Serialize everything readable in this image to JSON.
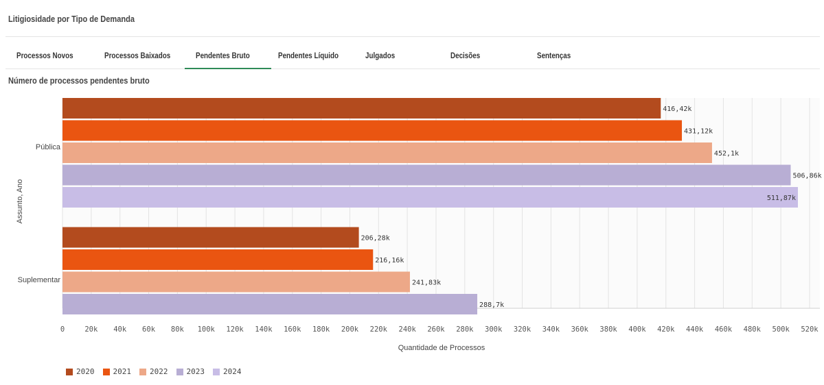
{
  "page": {
    "title": "Litigiosidade por Tipo de Demanda"
  },
  "tabs": [
    {
      "label": "Processos Novos",
      "active": false
    },
    {
      "label": "Processos Baixados",
      "active": false
    },
    {
      "label": "Pendentes Bruto",
      "active": true
    },
    {
      "label": "Pendentes Líquido",
      "active": false
    },
    {
      "label": "Julgados",
      "active": false
    },
    {
      "label": "Decisões",
      "active": false
    },
    {
      "label": "Sentenças",
      "active": false
    }
  ],
  "colors": {
    "2020": "#b34b1e",
    "2021": "#ea5511",
    "2022": "#eda888",
    "2023": "#b8aed4",
    "2024": "#c8bde6",
    "tab_active": "#2e8b57"
  },
  "chart_data": {
    "type": "bar",
    "orientation": "horizontal",
    "title": "Número de processos pendentes bruto",
    "xlabel": "Quantidade de Processos",
    "ylabel": "Assunto, Ano",
    "xlim": [
      0,
      520000
    ],
    "xticks": [
      "0",
      "20k",
      "40k",
      "60k",
      "80k",
      "100k",
      "120k",
      "140k",
      "160k",
      "180k",
      "200k",
      "220k",
      "240k",
      "260k",
      "280k",
      "300k",
      "320k",
      "340k",
      "360k",
      "380k",
      "400k",
      "420k",
      "440k",
      "460k",
      "480k",
      "500k",
      "520k"
    ],
    "grid": true,
    "legend_position": "bottom-left",
    "categories": [
      "Pública",
      "Suplementar"
    ],
    "series": [
      {
        "name": "2020",
        "values": [
          416420,
          206280
        ],
        "labels": [
          "416,42k",
          "206,28k"
        ]
      },
      {
        "name": "2021",
        "values": [
          431120,
          216160
        ],
        "labels": [
          "431,12k",
          "216,16k"
        ]
      },
      {
        "name": "2022",
        "values": [
          452100,
          241830
        ],
        "labels": [
          "452,1k",
          "241,83k"
        ]
      },
      {
        "name": "2023",
        "values": [
          506860,
          288700
        ],
        "labels": [
          "506,86k",
          "288,7k"
        ]
      },
      {
        "name": "2024",
        "values": [
          511870,
          null
        ],
        "labels": [
          "511,87k",
          ""
        ]
      }
    ]
  }
}
